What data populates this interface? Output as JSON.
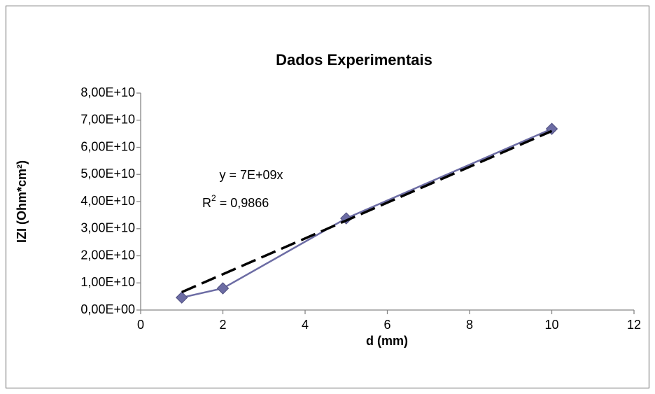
{
  "chart_data": {
    "type": "line",
    "title": "Dados Experimentais",
    "x_label": "d (mm)",
    "y_label": "IZI (Ohm*cm²)",
    "x": [
      1,
      2,
      5,
      10
    ],
    "series": [
      {
        "color": "#6c6ca4",
        "values": [
          4600000000,
          8000000000,
          33800000000,
          66800000000
        ]
      }
    ],
    "trendline": {
      "x": [
        1,
        10
      ],
      "values": [
        6600000000,
        66000000000
      ],
      "color": "#000000",
      "equation": "y = 7E+09x",
      "r2": {
        "base": "R",
        "sup": "2",
        "rest": " = 0,9866"
      }
    },
    "xlim": [
      0,
      12
    ],
    "xticks": [
      0,
      2,
      4,
      6,
      8,
      10,
      12
    ],
    "ylim": [
      0,
      80000000000
    ],
    "yticks": [
      {
        "value": 0,
        "label": "0,00E+00"
      },
      {
        "value": 10000000000,
        "label": "1,00E+10"
      },
      {
        "value": 20000000000,
        "label": "2,00E+10"
      },
      {
        "value": 30000000000,
        "label": "3,00E+10"
      },
      {
        "value": 40000000000,
        "label": "4,00E+10"
      },
      {
        "value": 50000000000,
        "label": "5,00E+10"
      },
      {
        "value": 60000000000,
        "label": "6,00E+10"
      },
      {
        "value": 70000000000,
        "label": "7,00E+10"
      },
      {
        "value": 80000000000,
        "label": "8,00E+10"
      }
    ],
    "grid": false
  }
}
